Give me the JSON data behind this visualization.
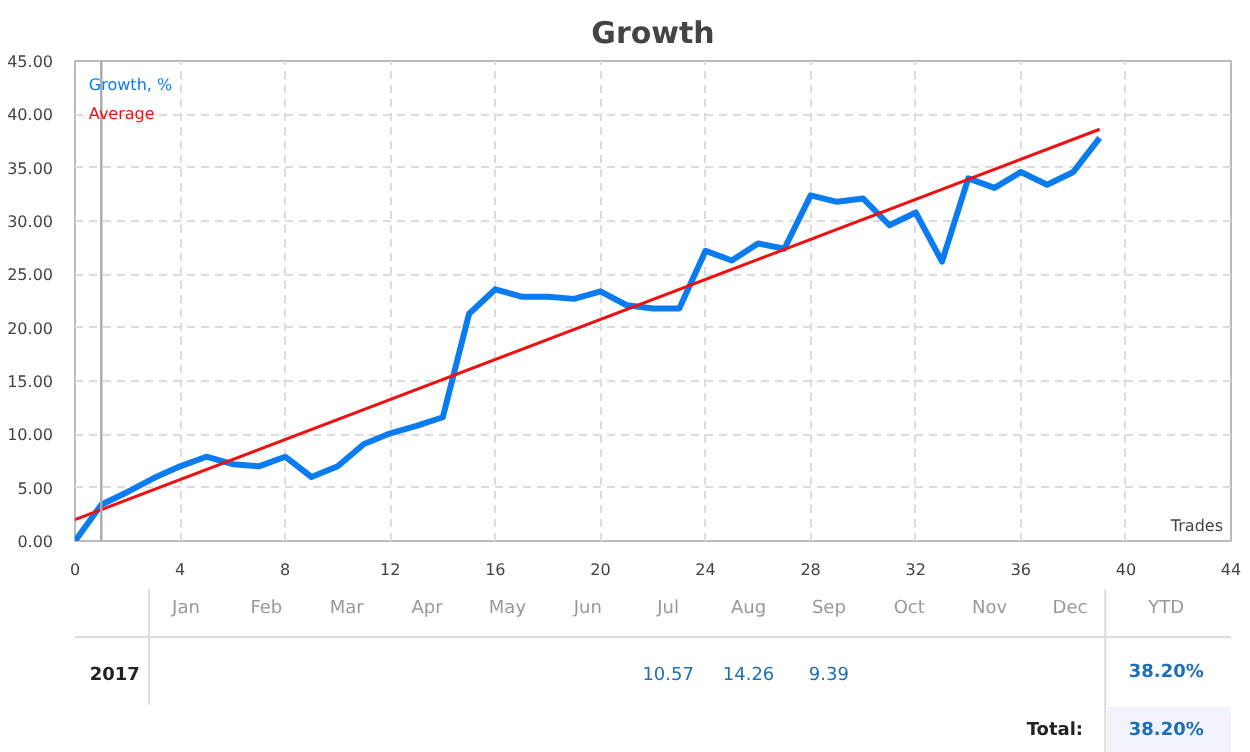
{
  "chart_data": [
    {
      "type": "line",
      "title": "Growth",
      "xlabel": "Trades",
      "x": [
        0,
        1,
        2,
        3,
        4,
        5,
        6,
        7,
        8,
        9,
        10,
        11,
        12,
        13,
        14,
        15,
        16,
        17,
        18,
        19,
        20,
        21,
        22,
        23,
        24,
        25,
        26,
        27,
        28,
        29,
        30,
        31,
        32,
        33,
        34,
        35,
        36,
        37,
        38,
        39
      ],
      "series": [
        {
          "name": "Growth, %",
          "color": "#0a7cf0",
          "values": [
            0,
            3.4,
            4.6,
            5.9,
            7.0,
            7.9,
            7.2,
            7.0,
            7.9,
            6.0,
            7.0,
            9.1,
            10.1,
            10.8,
            11.6,
            21.3,
            23.6,
            22.9,
            22.9,
            22.7,
            23.4,
            22.1,
            21.8,
            21.8,
            27.2,
            26.3,
            27.9,
            27.4,
            32.4,
            31.8,
            32.1,
            29.6,
            30.8,
            26.2,
            34.0,
            33.1,
            34.6,
            33.4,
            34.6,
            37.8
          ]
        },
        {
          "name": "Average",
          "color": "#ee1111",
          "x": [
            0,
            39
          ],
          "values": [
            2.0,
            38.6
          ]
        }
      ],
      "xlim": [
        0,
        44
      ],
      "xticks": [
        0,
        4,
        8,
        12,
        16,
        20,
        24,
        28,
        32,
        36,
        40,
        44
      ],
      "ylim": [
        0,
        45
      ],
      "yticks": [
        {
          "value": 0,
          "label": "0.00"
        },
        {
          "value": 5,
          "label": "5.00"
        },
        {
          "value": 10,
          "label": "10.00"
        },
        {
          "value": 15,
          "label": "15.00"
        },
        {
          "value": 20,
          "label": "20.00"
        },
        {
          "value": 25,
          "label": "25.00"
        },
        {
          "value": 30,
          "label": "30.00"
        },
        {
          "value": 35,
          "label": "35.00"
        },
        {
          "value": 40,
          "label": "40.00"
        },
        {
          "value": 45,
          "label": "45.00"
        }
      ],
      "grid": true,
      "legend": "top left",
      "line_style": "solid",
      "ref_lines": [
        {
          "axis": "x",
          "value": 1,
          "color": "#aaaaaa"
        }
      ]
    },
    {
      "type": "heatmap",
      "categories": [
        "Jan",
        "Feb",
        "Mar",
        "Apr",
        "May",
        "Jun",
        "Jul",
        "Aug",
        "Sep",
        "Oct",
        "Nov",
        "Dec"
      ],
      "y_categories": [
        "2017"
      ],
      "cells": [
        [
          null,
          null,
          null,
          null,
          null,
          null,
          10.57,
          14.26,
          9.39,
          null,
          null,
          null
        ]
      ],
      "data_labels": true,
      "annotations": [
        "YTD",
        "38.20%",
        "Total:",
        "38.20%"
      ]
    }
  ]
}
